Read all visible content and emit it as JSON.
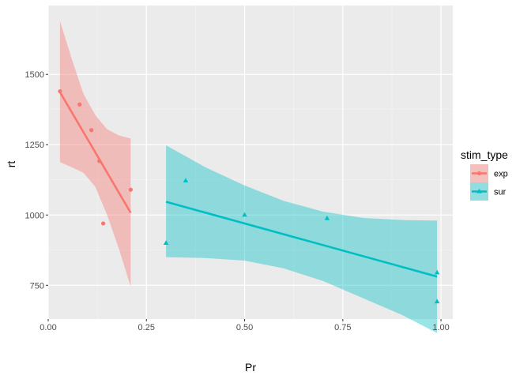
{
  "chart_data": {
    "type": "scatter",
    "xlabel": "Pr",
    "ylabel": "rt",
    "xlim": [
      -0.0,
      1.03
    ],
    "ylim": [
      630,
      1745
    ],
    "x_ticks": [
      0.0,
      0.25,
      0.5,
      0.75,
      1.0
    ],
    "x_tick_labels": [
      "0.00",
      "0.25",
      "0.50",
      "0.75",
      "1.00"
    ],
    "y_ticks": [
      750,
      1000,
      1250,
      1500
    ],
    "y_tick_labels": [
      "750",
      "1000",
      "1250",
      "1500"
    ],
    "grid": true,
    "legend": {
      "title": "stim_type",
      "placement": "right"
    },
    "series": [
      {
        "name": "exp",
        "marker": "circle",
        "color": "#F8766D",
        "points": [
          {
            "x": 0.03,
            "y": 1440
          },
          {
            "x": 0.08,
            "y": 1393
          },
          {
            "x": 0.11,
            "y": 1302
          },
          {
            "x": 0.13,
            "y": 1192
          },
          {
            "x": 0.14,
            "y": 970
          },
          {
            "x": 0.21,
            "y": 1090
          }
        ],
        "fit": [
          {
            "x": 0.03,
            "y": 1437
          },
          {
            "x": 0.21,
            "y": 1008
          }
        ],
        "ci_upper": [
          {
            "x": 0.03,
            "y": 1690
          },
          {
            "x": 0.06,
            "y": 1555
          },
          {
            "x": 0.09,
            "y": 1430
          },
          {
            "x": 0.12,
            "y": 1355
          },
          {
            "x": 0.15,
            "y": 1305
          },
          {
            "x": 0.18,
            "y": 1283
          },
          {
            "x": 0.21,
            "y": 1272
          }
        ],
        "ci_lower": [
          {
            "x": 0.03,
            "y": 1188
          },
          {
            "x": 0.06,
            "y": 1170
          },
          {
            "x": 0.09,
            "y": 1150
          },
          {
            "x": 0.12,
            "y": 1100
          },
          {
            "x": 0.15,
            "y": 1000
          },
          {
            "x": 0.18,
            "y": 880
          },
          {
            "x": 0.21,
            "y": 745
          }
        ]
      },
      {
        "name": "sur",
        "marker": "triangle",
        "color": "#00BFC4",
        "points": [
          {
            "x": 0.3,
            "y": 900
          },
          {
            "x": 0.35,
            "y": 1122
          },
          {
            "x": 0.5,
            "y": 1000
          },
          {
            "x": 0.71,
            "y": 988
          },
          {
            "x": 0.99,
            "y": 795
          },
          {
            "x": 0.99,
            "y": 692
          }
        ],
        "fit": [
          {
            "x": 0.3,
            "y": 1047
          },
          {
            "x": 0.99,
            "y": 781
          }
        ],
        "ci_upper": [
          {
            "x": 0.3,
            "y": 1248
          },
          {
            "x": 0.4,
            "y": 1170
          },
          {
            "x": 0.5,
            "y": 1105
          },
          {
            "x": 0.6,
            "y": 1050
          },
          {
            "x": 0.7,
            "y": 1012
          },
          {
            "x": 0.8,
            "y": 990
          },
          {
            "x": 0.9,
            "y": 982
          },
          {
            "x": 0.99,
            "y": 980
          }
        ],
        "ci_lower": [
          {
            "x": 0.3,
            "y": 850
          },
          {
            "x": 0.4,
            "y": 847
          },
          {
            "x": 0.5,
            "y": 838
          },
          {
            "x": 0.6,
            "y": 810
          },
          {
            "x": 0.7,
            "y": 765
          },
          {
            "x": 0.8,
            "y": 705
          },
          {
            "x": 0.9,
            "y": 645
          },
          {
            "x": 0.99,
            "y": 580
          }
        ]
      }
    ]
  }
}
